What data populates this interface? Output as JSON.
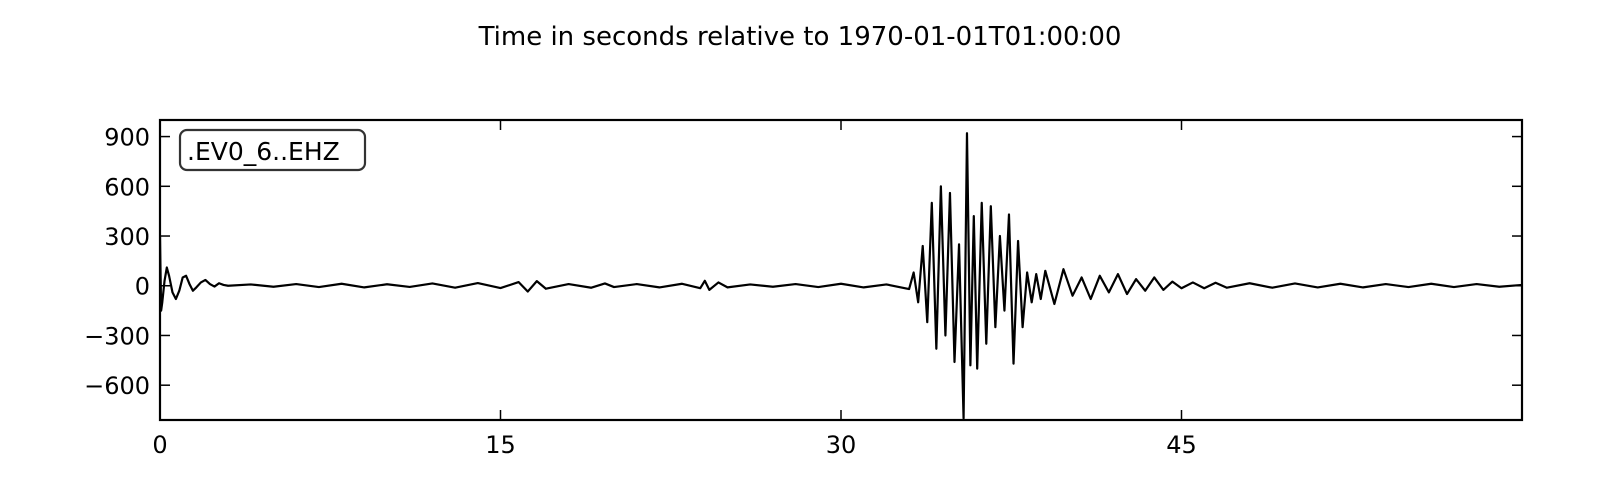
{
  "chart_data": {
    "type": "line",
    "title": "Time in seconds relative to 1970-01-01T01:00:00",
    "xlabel": "",
    "ylabel": "",
    "xlim": [
      0,
      60
    ],
    "ylim": [
      -810,
      1000
    ],
    "x_ticks": [
      0,
      15,
      30,
      45
    ],
    "y_ticks": [
      900,
      600,
      300,
      0,
      -300,
      -600
    ],
    "x_tick_labels": [
      "0",
      "15",
      "30",
      "45"
    ],
    "y_tick_labels": [
      "900",
      "600",
      "300",
      "0",
      "−300",
      "−600"
    ],
    "legend": {
      "label": ".EV0_6..EHZ",
      "placement": "top-left"
    },
    "grid": false,
    "series": [
      {
        "name": ".EV0_6..EHZ",
        "color": "#000000",
        "x": [
          0.0,
          0.05,
          0.1,
          0.2,
          0.3,
          0.4,
          0.55,
          0.7,
          0.85,
          1.0,
          1.15,
          1.3,
          1.45,
          1.6,
          1.8,
          2.0,
          2.2,
          2.4,
          2.6,
          2.8,
          3.0,
          4.0,
          5.0,
          6.0,
          7.0,
          8.0,
          9.0,
          10.0,
          11.0,
          12.0,
          13.0,
          14.0,
          15.0,
          15.8,
          16.2,
          16.6,
          17.0,
          18.0,
          19.0,
          19.6,
          20.0,
          21.0,
          22.0,
          23.0,
          23.8,
          24.0,
          24.2,
          24.6,
          25.0,
          26.0,
          27.0,
          28.0,
          29.0,
          30.0,
          31.0,
          32.0,
          33.0,
          33.2,
          33.4,
          33.6,
          33.8,
          34.0,
          34.2,
          34.4,
          34.6,
          34.8,
          35.0,
          35.2,
          35.4,
          35.55,
          35.7,
          35.85,
          36.0,
          36.2,
          36.4,
          36.6,
          36.8,
          37.0,
          37.2,
          37.4,
          37.6,
          37.8,
          38.0,
          38.2,
          38.4,
          38.6,
          38.8,
          39.0,
          39.4,
          39.8,
          40.2,
          40.6,
          41.0,
          41.4,
          41.8,
          42.2,
          42.6,
          43.0,
          43.4,
          43.8,
          44.2,
          44.6,
          45.0,
          45.5,
          46.0,
          46.5,
          47.0,
          48.0,
          49.0,
          50.0,
          51.0,
          52.0,
          53.0,
          54.0,
          55.0,
          56.0,
          57.0,
          58.0,
          59.0,
          60.0
        ],
        "y": [
          300,
          -150,
          -100,
          30,
          110,
          60,
          -40,
          -80,
          -30,
          50,
          60,
          10,
          -30,
          -10,
          20,
          35,
          10,
          -5,
          15,
          5,
          0,
          8,
          -6,
          10,
          -8,
          12,
          -10,
          9,
          -7,
          14,
          -12,
          16,
          -14,
          22,
          -35,
          28,
          -18,
          10,
          -12,
          14,
          -8,
          10,
          -10,
          12,
          -15,
          30,
          -25,
          20,
          -10,
          8,
          -6,
          10,
          -8,
          12,
          -10,
          8,
          -20,
          80,
          -100,
          240,
          -220,
          500,
          -380,
          600,
          -300,
          560,
          -460,
          250,
          -800,
          920,
          -480,
          420,
          -500,
          500,
          -350,
          480,
          -250,
          300,
          -150,
          430,
          -470,
          270,
          -250,
          80,
          -100,
          70,
          -80,
          90,
          -110,
          100,
          -60,
          50,
          -80,
          60,
          -40,
          70,
          -50,
          40,
          -30,
          50,
          -25,
          25,
          -15,
          20,
          -15,
          18,
          -12,
          15,
          -12,
          14,
          -10,
          12,
          -10,
          10,
          -8,
          12,
          -8,
          10,
          -6,
          5
        ]
      }
    ]
  }
}
